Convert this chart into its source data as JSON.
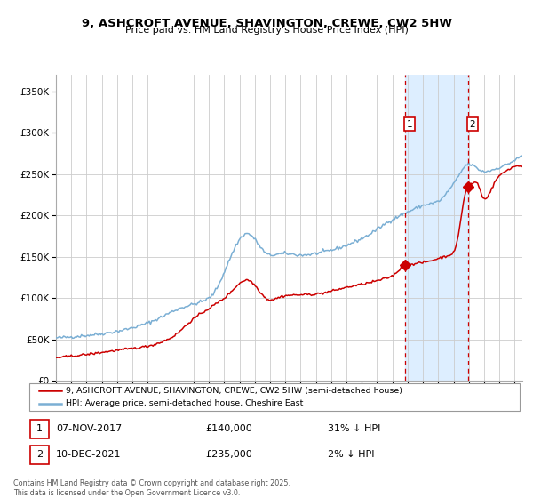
{
  "title": "9, ASHCROFT AVENUE, SHAVINGTON, CREWE, CW2 5HW",
  "subtitle": "Price paid vs. HM Land Registry's House Price Index (HPI)",
  "ylim": [
    0,
    370000
  ],
  "yticks": [
    0,
    50000,
    100000,
    150000,
    200000,
    250000,
    300000,
    350000
  ],
  "ytick_labels": [
    "£0",
    "£50K",
    "£100K",
    "£150K",
    "£200K",
    "£250K",
    "£300K",
    "£350K"
  ],
  "hpi_color": "#7bafd4",
  "price_color": "#cc0000",
  "marker_color": "#cc0000",
  "shade_color": "#ddeeff",
  "vline_color": "#cc0000",
  "grid_color": "#cccccc",
  "background_color": "#ffffff",
  "point1_x": 2017.85,
  "point1_y": 140000,
  "point2_x": 2021.94,
  "point2_y": 235000,
  "point1_date": "07-NOV-2017",
  "point1_price": "£140,000",
  "point1_hpi": "31% ↓ HPI",
  "point2_date": "10-DEC-2021",
  "point2_price": "£235,000",
  "point2_hpi": "2% ↓ HPI",
  "legend_line1": "9, ASHCROFT AVENUE, SHAVINGTON, CREWE, CW2 5HW (semi-detached house)",
  "legend_line2": "HPI: Average price, semi-detached house, Cheshire East",
  "footer": "Contains HM Land Registry data © Crown copyright and database right 2025.\nThis data is licensed under the Open Government Licence v3.0.",
  "xmin": 1995.0,
  "xmax": 2025.5
}
